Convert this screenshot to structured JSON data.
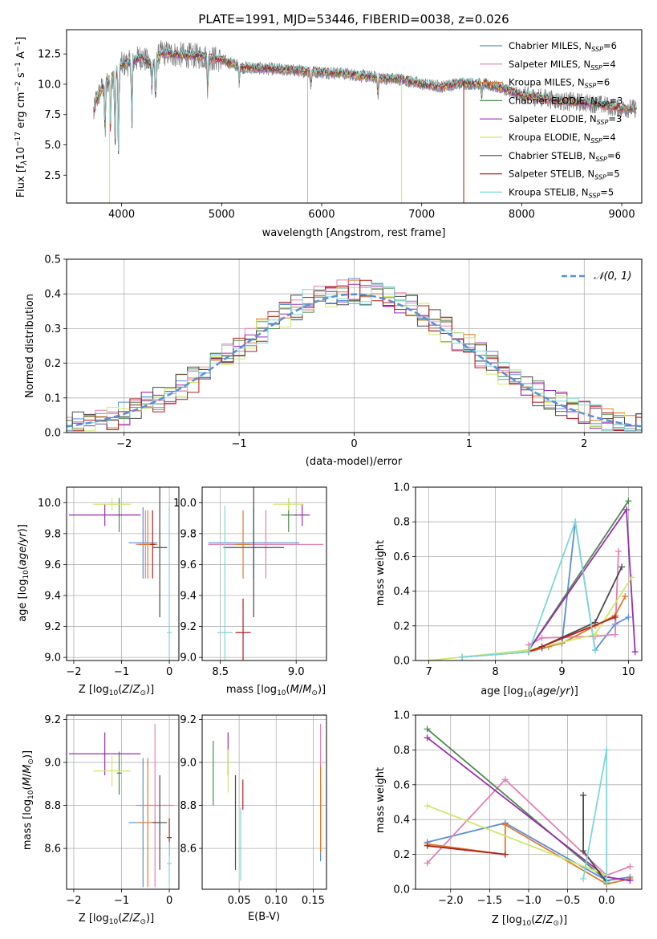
{
  "colors": {
    "Chabrier MILES": "#5b8fd8",
    "Salpeter MILES": "#e57fb1",
    "Kroupa MILES": "#e07b2a",
    "Chabrier ELODIE": "#4e8a4e",
    "Salpeter ELODIE": "#9a2db0",
    "Kroupa ELODIE": "#cfe86a",
    "Chabrier STELIB": "#4a4a4a",
    "Salpeter STELIB": "#b21f1f",
    "Kroupa STELIB": "#7fd6d6"
  },
  "chart_data": [
    {
      "id": "spectrum",
      "type": "line",
      "title": "PLATE=1991, MJD=53446, FIBERID=0038, z=0.026",
      "xlabel": "wavelength [Angstrom, rest frame]",
      "ylabel": "Flux [f_λ 10^-17 erg cm^-2 s^-1 A^-1]",
      "xlim": [
        3450,
        9200
      ],
      "ylim": [
        0.2,
        14.5
      ],
      "xticks": [
        4000,
        5000,
        6000,
        7000,
        8000,
        9000
      ],
      "yticks": [
        2.5,
        5.0,
        7.5,
        10.0,
        12.5
      ],
      "ytick_labels": [
        "2.5",
        "5.0",
        "7.5",
        "10.0",
        "12.5"
      ],
      "legend_location": "top-right",
      "legend": [
        {
          "model": "Chabrier MILES",
          "n": "6"
        },
        {
          "model": "Salpeter MILES",
          "n": "4"
        },
        {
          "model": "Kroupa MILES",
          "n": "6"
        },
        {
          "model": "Chabrier ELODIE",
          "n": "3"
        },
        {
          "model": "Salpeter ELODIE",
          "n": "3"
        },
        {
          "model": "Kroupa ELODIE",
          "n": "4"
        },
        {
          "model": "Chabrier STELIB",
          "n": "6"
        },
        {
          "model": "Salpeter STELIB",
          "n": "5"
        },
        {
          "model": "Kroupa STELIB",
          "n": "5"
        }
      ],
      "continuum": [
        [
          3720,
          8.2
        ],
        [
          3800,
          9.6
        ],
        [
          3900,
          10.6
        ],
        [
          4000,
          11.6
        ],
        [
          4100,
          11.8
        ],
        [
          4200,
          12.3
        ],
        [
          4300,
          11.5
        ],
        [
          4400,
          12.6
        ],
        [
          4600,
          12.4
        ],
        [
          4800,
          12.3
        ],
        [
          5000,
          12.0
        ],
        [
          5200,
          11.4
        ],
        [
          5400,
          11.3
        ],
        [
          5600,
          11.2
        ],
        [
          5800,
          11.1
        ],
        [
          6000,
          11.0
        ],
        [
          6200,
          10.9
        ],
        [
          6400,
          10.7
        ],
        [
          6600,
          10.5
        ],
        [
          6800,
          10.4
        ],
        [
          7000,
          10.0
        ],
        [
          7200,
          9.8
        ],
        [
          7400,
          10.1
        ],
        [
          7600,
          10.0
        ],
        [
          7800,
          9.7
        ],
        [
          8000,
          9.1
        ],
        [
          8200,
          8.9
        ],
        [
          8400,
          8.6
        ],
        [
          8600,
          8.5
        ],
        [
          8800,
          8.3
        ],
        [
          9000,
          8.0
        ]
      ],
      "features": [
        [
          3725,
          7.5
        ],
        [
          3835,
          5.8
        ],
        [
          3889,
          6.2
        ],
        [
          3934,
          4.4
        ],
        [
          3969,
          4.2
        ],
        [
          4102,
          5.8
        ],
        [
          4304,
          9.8
        ],
        [
          4340,
          7.9
        ],
        [
          4861,
          9.4
        ],
        [
          5175,
          10.2
        ],
        [
          5893,
          9.8
        ],
        [
          6563,
          9.1
        ],
        [
          7600,
          8.9
        ],
        [
          8498,
          8.7
        ],
        [
          8542,
          8.4
        ],
        [
          8662,
          8.5
        ]
      ],
      "gaps": [
        {
          "model": "Kroupa STELIB",
          "x": 5860,
          "to": 0.2
        },
        {
          "model": "Kroupa ELODIE",
          "x": 3880,
          "to": 0.2
        },
        {
          "model": "Kroupa ELODIE",
          "x": 6800,
          "to": 0.2
        },
        {
          "model": "Kroupa MILES",
          "x": 7420,
          "to": 0.2
        },
        {
          "model": "Salpeter STELIB",
          "x": 7420,
          "to": 0.2
        }
      ]
    },
    {
      "id": "residuals",
      "type": "line",
      "xlabel": "(data-model)/error",
      "ylabel": "Normed distribution",
      "xlim": [
        -2.5,
        2.5
      ],
      "ylim": [
        0.0,
        0.5
      ],
      "xticks": [
        -2,
        -1,
        0,
        1,
        2
      ],
      "xtick_labels": [
        "−2",
        "−1",
        "0",
        "1",
        "2"
      ],
      "yticks": [
        0.0,
        0.1,
        0.2,
        0.3,
        0.4,
        0.5
      ],
      "ytick_labels": [
        "0.0",
        "0.1",
        "0.2",
        "0.3",
        "0.4",
        "0.5"
      ],
      "reference_curve": {
        "label": "𝒩(0, 1)",
        "mu": 0,
        "sigma": 1,
        "color": "#5b8fd8"
      },
      "legend_location": "top-right",
      "bin_width": 0.1
    },
    {
      "id": "age_vs_Z",
      "type": "scatter",
      "xlabel": "Z [log10(Z/Z⊙)]",
      "ylabel": "age [log10(age/yr)]",
      "xlim": [
        -2.15,
        0.2
      ],
      "ylim": [
        8.98,
        10.1
      ],
      "xticks": [
        -2,
        -1,
        0
      ],
      "xtick_labels": [
        "−2",
        "−1",
        "0"
      ],
      "yticks": [
        9.0,
        9.2,
        9.4,
        9.6,
        9.8,
        10.0
      ],
      "ytick_labels": [
        "9.0",
        "9.2",
        "9.4",
        "9.6",
        "9.8",
        "10.0"
      ],
      "points": [
        {
          "model": "Chabrier MILES",
          "x": -0.55,
          "y": 9.74,
          "xerr": 0.3,
          "yerr": 0.23
        },
        {
          "model": "Salpeter MILES",
          "x": -0.5,
          "y": 9.73,
          "xerr": 0.2,
          "yerr": 0.22
        },
        {
          "model": "Kroupa MILES",
          "x": -0.45,
          "y": 9.73,
          "xerr": 0.2,
          "yerr": 0.22
        },
        {
          "model": "Chabrier ELODIE",
          "x": -1.05,
          "y": 9.92,
          "xerr": 0.05,
          "yerr": 0.11
        },
        {
          "model": "Salpeter ELODIE",
          "x": -1.35,
          "y": 9.92,
          "xerr": 0.75,
          "yerr": 0.07
        },
        {
          "model": "Kroupa ELODIE",
          "x": -1.2,
          "y": 9.99,
          "xerr": 0.4,
          "yerr": 0.04
        },
        {
          "model": "Chabrier STELIB",
          "x": -0.2,
          "y": 9.71,
          "xerr": 0.15,
          "yerr": 0.45
        },
        {
          "model": "Salpeter STELIB",
          "x": -0.35,
          "y": 9.73,
          "xerr": 0.05,
          "yerr": 0.22
        },
        {
          "model": "Kroupa STELIB",
          "x": 0.0,
          "y": 9.16,
          "xerr": 0.05,
          "yerr": 0.82
        }
      ]
    },
    {
      "id": "age_vs_mass",
      "type": "scatter",
      "xlabel": "mass [log10(M/M⊙)]",
      "xlim": [
        8.38,
        9.2
      ],
      "ylim": [
        8.98,
        10.1
      ],
      "xticks": [
        8.5,
        9.0
      ],
      "xtick_labels": [
        "8.5",
        "9.0"
      ],
      "yticks": [
        9.0,
        9.2,
        9.4,
        9.6,
        9.8,
        10.0
      ],
      "ytick_labels": [
        "9.0",
        "9.2",
        "9.4",
        "9.6",
        "9.8",
        "10.0"
      ],
      "points": [
        {
          "model": "Chabrier MILES",
          "x": 8.72,
          "y": 9.74,
          "xerr": 0.3,
          "yerr": 0.23
        },
        {
          "model": "Salpeter MILES",
          "x": 8.8,
          "y": 9.73,
          "xerr": 0.38,
          "yerr": 0.22
        },
        {
          "model": "Kroupa MILES",
          "x": 8.65,
          "y": 9.73,
          "xerr": 0.05,
          "yerr": 0.22
        },
        {
          "model": "Chabrier ELODIE",
          "x": 8.95,
          "y": 9.92,
          "xerr": 0.05,
          "yerr": 0.11
        },
        {
          "model": "Salpeter ELODIE",
          "x": 9.04,
          "y": 9.92,
          "xerr": 0.05,
          "yerr": 0.07
        },
        {
          "model": "Kroupa ELODIE",
          "x": 8.95,
          "y": 9.99,
          "xerr": 0.1,
          "yerr": 0.04
        },
        {
          "model": "Chabrier STELIB",
          "x": 8.72,
          "y": 9.71,
          "xerr": 0.2,
          "yerr": 0.45
        },
        {
          "model": "Salpeter STELIB",
          "x": 8.65,
          "y": 9.16,
          "xerr": 0.05,
          "yerr": 0.22
        },
        {
          "model": "Kroupa STELIB",
          "x": 8.53,
          "y": 9.16,
          "xerr": 0.05,
          "yerr": 0.82
        }
      ]
    },
    {
      "id": "mass_weight_vs_age",
      "type": "line",
      "xlabel": "age [log10(age/yr)]",
      "ylabel": "mass weight",
      "xlim": [
        6.8,
        10.2
      ],
      "ylim": [
        0.0,
        1.0
      ],
      "xticks": [
        7,
        8,
        9,
        10
      ],
      "xtick_labels": [
        "7",
        "8",
        "9",
        "10"
      ],
      "yticks": [
        0.0,
        0.2,
        0.4,
        0.6,
        0.8,
        1.0
      ],
      "ytick_labels": [
        "0.0",
        "0.2",
        "0.4",
        "0.6",
        "0.8",
        "1.0"
      ],
      "series": [
        {
          "model": "Chabrier MILES",
          "x": [
            7.5,
            8.5,
            8.7,
            9.0,
            9.2,
            9.5,
            9.8,
            10.0
          ],
          "y": [
            0.02,
            0.05,
            0.07,
            0.1,
            0.8,
            0.06,
            0.21,
            0.25
          ]
        },
        {
          "model": "Salpeter MILES",
          "x": [
            8.5,
            8.7,
            9.5,
            9.8,
            9.85
          ],
          "y": [
            0.09,
            0.13,
            0.14,
            0.15,
            0.63
          ]
        },
        {
          "model": "Kroupa MILES",
          "x": [
            7.5,
            8.5,
            8.8,
            9.0,
            9.5,
            9.8,
            9.95
          ],
          "y": [
            0.02,
            0.05,
            0.08,
            0.1,
            0.2,
            0.26,
            0.37
          ]
        },
        {
          "model": "Chabrier ELODIE",
          "x": [
            8.5,
            10.0
          ],
          "y": [
            0.06,
            0.92
          ]
        },
        {
          "model": "Salpeter ELODIE",
          "x": [
            8.5,
            9.97,
            10.1
          ],
          "y": [
            0.06,
            0.87,
            0.05
          ]
        },
        {
          "model": "Kroupa ELODIE",
          "x": [
            7.0,
            8.5,
            9.5,
            10.05
          ],
          "y": [
            0.0,
            0.06,
            0.15,
            0.48
          ]
        },
        {
          "model": "Chabrier STELIB",
          "x": [
            8.7,
            9.5,
            9.9
          ],
          "y": [
            0.08,
            0.22,
            0.54
          ]
        },
        {
          "model": "Salpeter STELIB",
          "x": [
            8.5,
            9.8
          ],
          "y": [
            0.05,
            0.25
          ]
        },
        {
          "model": "Kroupa STELIB",
          "x": [
            7.5,
            8.5,
            9.2,
            9.5
          ],
          "y": [
            0.02,
            0.05,
            0.8,
            0.06
          ]
        }
      ]
    },
    {
      "id": "mass_vs_Z",
      "type": "scatter",
      "xlabel": "Z [log10(Z/Z⊙)]",
      "ylabel": "mass [log10(M/M⊙)]",
      "xlim": [
        -2.15,
        0.2
      ],
      "ylim": [
        8.41,
        9.22
      ],
      "xticks": [
        -2,
        -1,
        0
      ],
      "xtick_labels": [
        "−2",
        "−1",
        "0"
      ],
      "yticks": [
        8.6,
        8.8,
        9.0,
        9.2
      ],
      "ytick_labels": [
        "8.6",
        "8.8",
        "9.0",
        "9.2"
      ],
      "points": [
        {
          "model": "Chabrier MILES",
          "x": -0.55,
          "y": 8.72,
          "xerr": 0.3,
          "yerr": 0.3
        },
        {
          "model": "Salpeter MILES",
          "x": -0.3,
          "y": 8.8,
          "xerr": 0.4,
          "yerr": 0.38
        },
        {
          "model": "Kroupa MILES",
          "x": -0.45,
          "y": 8.72,
          "xerr": 0.2,
          "yerr": 0.3
        },
        {
          "model": "Chabrier ELODIE",
          "x": -1.05,
          "y": 8.95,
          "xerr": 0.05,
          "yerr": 0.1
        },
        {
          "model": "Salpeter ELODIE",
          "x": -1.35,
          "y": 9.04,
          "xerr": 0.75,
          "yerr": 0.1
        },
        {
          "model": "Kroupa ELODIE",
          "x": -1.2,
          "y": 8.96,
          "xerr": 0.4,
          "yerr": 0.07
        },
        {
          "model": "Chabrier STELIB",
          "x": -0.2,
          "y": 8.72,
          "xerr": 0.15,
          "yerr": 0.22
        },
        {
          "model": "Salpeter STELIB",
          "x": 0.0,
          "y": 8.65,
          "xerr": 0.05,
          "yerr": 0.09
        },
        {
          "model": "Kroupa STELIB",
          "x": 0.0,
          "y": 8.53,
          "xerr": 0.05,
          "yerr": 0.1
        }
      ]
    },
    {
      "id": "mass_vs_ebv",
      "type": "scatter",
      "xlabel": "E(B-V)",
      "xlim": [
        0.0,
        0.168
      ],
      "ylim": [
        8.41,
        9.22
      ],
      "xticks": [
        0.05,
        0.1,
        0.15
      ],
      "xtick_labels": [
        "0.05",
        "0.10",
        "0.15"
      ],
      "yticks": [
        8.6,
        8.8,
        9.0,
        9.2
      ],
      "ytick_labels": [
        "8.6",
        "8.8",
        "9.0",
        "9.2"
      ],
      "points": [
        {
          "model": "Chabrier MILES",
          "x": 0.16,
          "y": 8.72,
          "yerr": 0.18
        },
        {
          "model": "Salpeter MILES",
          "x": 0.16,
          "y": 8.88,
          "yerr": 0.3
        },
        {
          "model": "Kroupa MILES",
          "x": 0.16,
          "y": 8.78,
          "yerr": 0.2
        },
        {
          "model": "Chabrier ELODIE",
          "x": 0.015,
          "y": 8.95,
          "yerr": 0.15
        },
        {
          "model": "Salpeter ELODIE",
          "x": 0.035,
          "y": 9.04,
          "yerr": 0.1
        },
        {
          "model": "Kroupa ELODIE",
          "x": 0.035,
          "y": 8.96,
          "yerr": 0.1
        },
        {
          "model": "Chabrier STELIB",
          "x": 0.045,
          "y": 8.72,
          "yerr": 0.22
        },
        {
          "model": "Salpeter STELIB",
          "x": 0.055,
          "y": 8.85,
          "yerr": 0.07
        },
        {
          "model": "Kroupa STELIB",
          "x": 0.052,
          "y": 8.62,
          "yerr": 0.17
        }
      ]
    },
    {
      "id": "mass_weight_vs_Z",
      "type": "line",
      "xlabel": "Z [log10(Z/Z⊙)]",
      "ylabel": "mass weight",
      "xlim": [
        -2.45,
        0.45
      ],
      "ylim": [
        0.0,
        1.0
      ],
      "xticks": [
        -2.0,
        -1.5,
        -1.0,
        -0.5,
        0.0
      ],
      "xtick_labels": [
        "−2.0",
        "−1.5",
        "−1.0",
        "−0.5",
        "0.0"
      ],
      "yticks": [
        0.0,
        0.2,
        0.4,
        0.6,
        0.8,
        1.0
      ],
      "ytick_labels": [
        "0.0",
        "0.2",
        "0.4",
        "0.6",
        "0.8",
        "1.0"
      ],
      "series": [
        {
          "model": "Chabrier MILES",
          "x": [
            -2.3,
            -1.3,
            0.0,
            0.3
          ],
          "y": [
            0.27,
            0.38,
            0.05,
            0.07
          ]
        },
        {
          "model": "Salpeter MILES",
          "x": [
            -2.3,
            -1.3,
            0.0,
            0.3
          ],
          "y": [
            0.15,
            0.63,
            0.08,
            0.13
          ]
        },
        {
          "model": "Kroupa MILES",
          "x": [
            -2.3,
            -1.3,
            -1.3,
            0.0,
            0.3
          ],
          "y": [
            0.26,
            0.2,
            0.37,
            0.03,
            0.06
          ]
        },
        {
          "model": "Chabrier ELODIE",
          "x": [
            -2.3,
            0.0
          ],
          "y": [
            0.92,
            0.05
          ]
        },
        {
          "model": "Salpeter ELODIE",
          "x": [
            -2.3,
            0.0,
            0.3
          ],
          "y": [
            0.87,
            0.07,
            0.05
          ]
        },
        {
          "model": "Kroupa ELODIE",
          "x": [
            -2.3,
            0.0
          ],
          "y": [
            0.48,
            0.08
          ]
        },
        {
          "model": "Chabrier STELIB",
          "x": [
            -0.3,
            -0.3,
            0.0
          ],
          "y": [
            0.54,
            0.22,
            0.04
          ]
        },
        {
          "model": "Salpeter STELIB",
          "x": [
            -2.3,
            -1.3
          ],
          "y": [
            0.25,
            0.2
          ]
        },
        {
          "model": "Kroupa STELIB",
          "x": [
            -0.3,
            0.0,
            0.0
          ],
          "y": [
            0.06,
            0.8,
            0.04
          ]
        }
      ]
    }
  ]
}
